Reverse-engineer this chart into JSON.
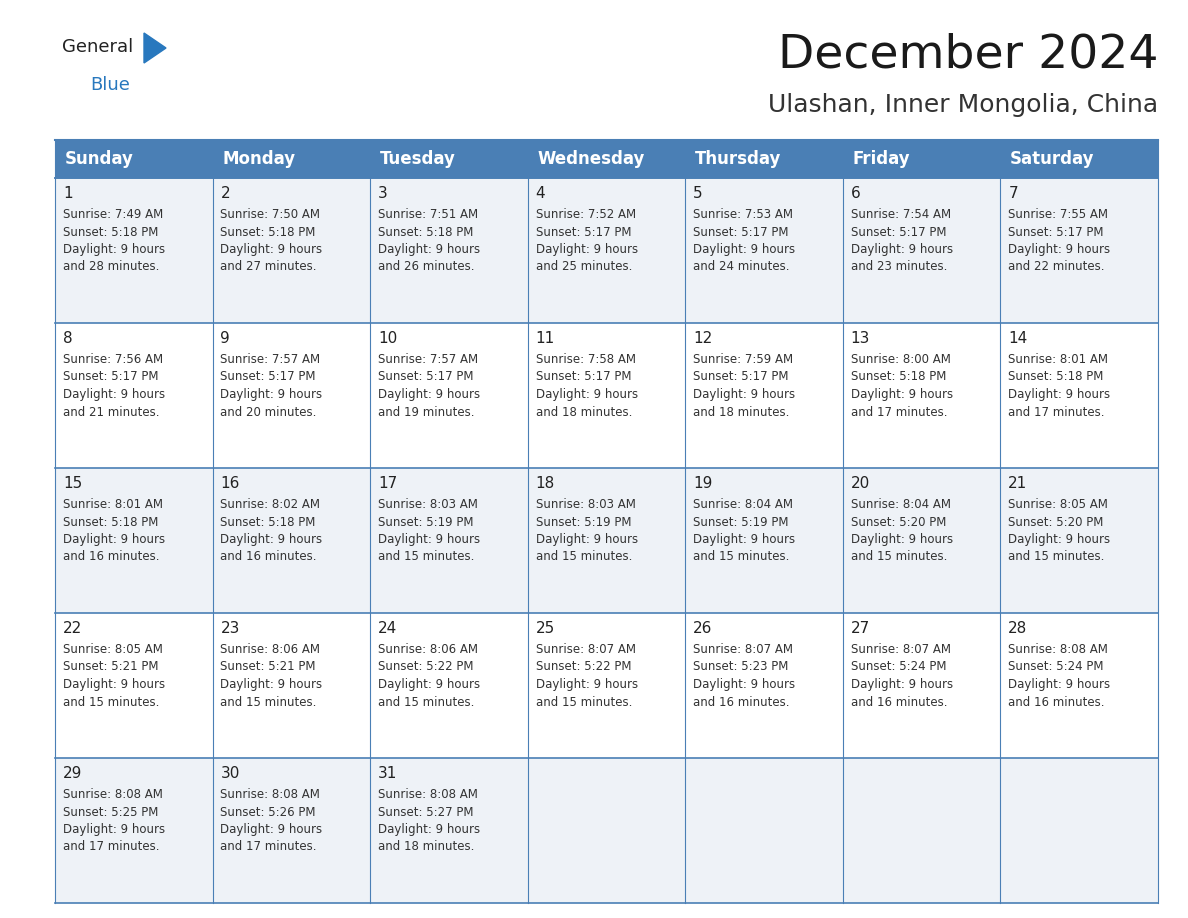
{
  "title": "December 2024",
  "subtitle": "Ulashan, Inner Mongolia, China",
  "days_of_week": [
    "Sunday",
    "Monday",
    "Tuesday",
    "Wednesday",
    "Thursday",
    "Friday",
    "Saturday"
  ],
  "header_bg": "#4a7fb5",
  "header_text": "#ffffff",
  "cell_bg_light": "#eef2f7",
  "cell_bg_white": "#ffffff",
  "border_color": "#4a7fb5",
  "day_num_color": "#222222",
  "cell_text_color": "#333333",
  "calendar_data": [
    [
      {
        "day": 1,
        "text": "Sunrise: 7:49 AM\nSunset: 5:18 PM\nDaylight: 9 hours\nand 28 minutes."
      },
      {
        "day": 2,
        "text": "Sunrise: 7:50 AM\nSunset: 5:18 PM\nDaylight: 9 hours\nand 27 minutes."
      },
      {
        "day": 3,
        "text": "Sunrise: 7:51 AM\nSunset: 5:18 PM\nDaylight: 9 hours\nand 26 minutes."
      },
      {
        "day": 4,
        "text": "Sunrise: 7:52 AM\nSunset: 5:17 PM\nDaylight: 9 hours\nand 25 minutes."
      },
      {
        "day": 5,
        "text": "Sunrise: 7:53 AM\nSunset: 5:17 PM\nDaylight: 9 hours\nand 24 minutes."
      },
      {
        "day": 6,
        "text": "Sunrise: 7:54 AM\nSunset: 5:17 PM\nDaylight: 9 hours\nand 23 minutes."
      },
      {
        "day": 7,
        "text": "Sunrise: 7:55 AM\nSunset: 5:17 PM\nDaylight: 9 hours\nand 22 minutes."
      }
    ],
    [
      {
        "day": 8,
        "text": "Sunrise: 7:56 AM\nSunset: 5:17 PM\nDaylight: 9 hours\nand 21 minutes."
      },
      {
        "day": 9,
        "text": "Sunrise: 7:57 AM\nSunset: 5:17 PM\nDaylight: 9 hours\nand 20 minutes."
      },
      {
        "day": 10,
        "text": "Sunrise: 7:57 AM\nSunset: 5:17 PM\nDaylight: 9 hours\nand 19 minutes."
      },
      {
        "day": 11,
        "text": "Sunrise: 7:58 AM\nSunset: 5:17 PM\nDaylight: 9 hours\nand 18 minutes."
      },
      {
        "day": 12,
        "text": "Sunrise: 7:59 AM\nSunset: 5:17 PM\nDaylight: 9 hours\nand 18 minutes."
      },
      {
        "day": 13,
        "text": "Sunrise: 8:00 AM\nSunset: 5:18 PM\nDaylight: 9 hours\nand 17 minutes."
      },
      {
        "day": 14,
        "text": "Sunrise: 8:01 AM\nSunset: 5:18 PM\nDaylight: 9 hours\nand 17 minutes."
      }
    ],
    [
      {
        "day": 15,
        "text": "Sunrise: 8:01 AM\nSunset: 5:18 PM\nDaylight: 9 hours\nand 16 minutes."
      },
      {
        "day": 16,
        "text": "Sunrise: 8:02 AM\nSunset: 5:18 PM\nDaylight: 9 hours\nand 16 minutes."
      },
      {
        "day": 17,
        "text": "Sunrise: 8:03 AM\nSunset: 5:19 PM\nDaylight: 9 hours\nand 15 minutes."
      },
      {
        "day": 18,
        "text": "Sunrise: 8:03 AM\nSunset: 5:19 PM\nDaylight: 9 hours\nand 15 minutes."
      },
      {
        "day": 19,
        "text": "Sunrise: 8:04 AM\nSunset: 5:19 PM\nDaylight: 9 hours\nand 15 minutes."
      },
      {
        "day": 20,
        "text": "Sunrise: 8:04 AM\nSunset: 5:20 PM\nDaylight: 9 hours\nand 15 minutes."
      },
      {
        "day": 21,
        "text": "Sunrise: 8:05 AM\nSunset: 5:20 PM\nDaylight: 9 hours\nand 15 minutes."
      }
    ],
    [
      {
        "day": 22,
        "text": "Sunrise: 8:05 AM\nSunset: 5:21 PM\nDaylight: 9 hours\nand 15 minutes."
      },
      {
        "day": 23,
        "text": "Sunrise: 8:06 AM\nSunset: 5:21 PM\nDaylight: 9 hours\nand 15 minutes."
      },
      {
        "day": 24,
        "text": "Sunrise: 8:06 AM\nSunset: 5:22 PM\nDaylight: 9 hours\nand 15 minutes."
      },
      {
        "day": 25,
        "text": "Sunrise: 8:07 AM\nSunset: 5:22 PM\nDaylight: 9 hours\nand 15 minutes."
      },
      {
        "day": 26,
        "text": "Sunrise: 8:07 AM\nSunset: 5:23 PM\nDaylight: 9 hours\nand 16 minutes."
      },
      {
        "day": 27,
        "text": "Sunrise: 8:07 AM\nSunset: 5:24 PM\nDaylight: 9 hours\nand 16 minutes."
      },
      {
        "day": 28,
        "text": "Sunrise: 8:08 AM\nSunset: 5:24 PM\nDaylight: 9 hours\nand 16 minutes."
      }
    ],
    [
      {
        "day": 29,
        "text": "Sunrise: 8:08 AM\nSunset: 5:25 PM\nDaylight: 9 hours\nand 17 minutes."
      },
      {
        "day": 30,
        "text": "Sunrise: 8:08 AM\nSunset: 5:26 PM\nDaylight: 9 hours\nand 17 minutes."
      },
      {
        "day": 31,
        "text": "Sunrise: 8:08 AM\nSunset: 5:27 PM\nDaylight: 9 hours\nand 18 minutes."
      },
      null,
      null,
      null,
      null
    ]
  ],
  "logo_general_color": "#222222",
  "logo_blue_color": "#2878be",
  "title_fontsize": 34,
  "subtitle_fontsize": 18,
  "header_fontsize": 12,
  "day_num_fontsize": 11,
  "cell_fontsize": 8.5
}
